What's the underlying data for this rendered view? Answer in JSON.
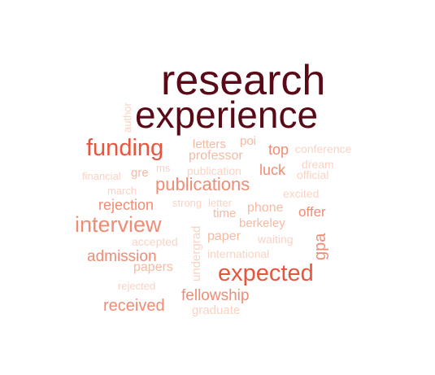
{
  "colors": {
    "dark": "#5a0a17",
    "strong": "#e8553f",
    "medium": "#f08c74",
    "light": "#f6b9a2",
    "pale": "#f9d3c4"
  },
  "words": [
    {
      "text": "research",
      "color": "dark",
      "rotated": false
    },
    {
      "text": "experience",
      "color": "dark",
      "rotated": false
    },
    {
      "text": "funding",
      "color": "strong",
      "rotated": false
    },
    {
      "text": "expected",
      "color": "strong",
      "rotated": false
    },
    {
      "text": "interview",
      "color": "medium",
      "rotated": false
    },
    {
      "text": "publications",
      "color": "medium",
      "rotated": false
    },
    {
      "text": "admission",
      "color": "medium",
      "rotated": false
    },
    {
      "text": "received",
      "color": "medium",
      "rotated": false
    },
    {
      "text": "fellowship",
      "color": "medium",
      "rotated": false
    },
    {
      "text": "rejection",
      "color": "medium",
      "rotated": false
    },
    {
      "text": "luck",
      "color": "medium",
      "rotated": false
    },
    {
      "text": "top",
      "color": "medium",
      "rotated": false
    },
    {
      "text": "offer",
      "color": "medium",
      "rotated": false
    },
    {
      "text": "gpa",
      "color": "medium",
      "rotated": true
    },
    {
      "text": "papers",
      "color": "light",
      "rotated": false
    },
    {
      "text": "paper",
      "color": "light",
      "rotated": false
    },
    {
      "text": "phone",
      "color": "light",
      "rotated": false
    },
    {
      "text": "professor",
      "color": "light",
      "rotated": false
    },
    {
      "text": "letters",
      "color": "light",
      "rotated": false
    },
    {
      "text": "poi",
      "color": "light",
      "rotated": false
    },
    {
      "text": "time",
      "color": "light",
      "rotated": false
    },
    {
      "text": "berkeley",
      "color": "light",
      "rotated": false
    },
    {
      "text": "conference",
      "color": "pale",
      "rotated": false
    },
    {
      "text": "dream",
      "color": "pale",
      "rotated": false
    },
    {
      "text": "official",
      "color": "pale",
      "rotated": false
    },
    {
      "text": "excited",
      "color": "pale",
      "rotated": false
    },
    {
      "text": "financial",
      "color": "pale",
      "rotated": false
    },
    {
      "text": "gre",
      "color": "light",
      "rotated": false
    },
    {
      "text": "ms",
      "color": "pale",
      "rotated": false
    },
    {
      "text": "publication",
      "color": "pale",
      "rotated": false
    },
    {
      "text": "march",
      "color": "pale",
      "rotated": false
    },
    {
      "text": "strong",
      "color": "pale",
      "rotated": false
    },
    {
      "text": "letter",
      "color": "pale",
      "rotated": false
    },
    {
      "text": "accepted",
      "color": "pale",
      "rotated": false
    },
    {
      "text": "waiting",
      "color": "pale",
      "rotated": false
    },
    {
      "text": "international",
      "color": "pale",
      "rotated": false
    },
    {
      "text": "rejected",
      "color": "pale",
      "rotated": false
    },
    {
      "text": "graduate",
      "color": "pale",
      "rotated": false
    },
    {
      "text": "author",
      "color": "pale",
      "rotated": true
    },
    {
      "text": "undergrad",
      "color": "pale",
      "rotated": true
    }
  ]
}
